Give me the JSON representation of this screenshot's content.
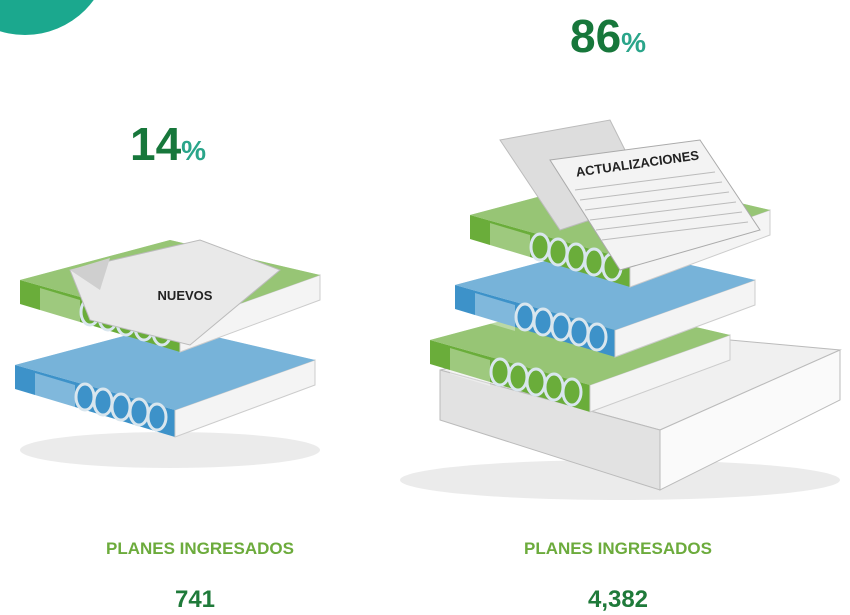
{
  "left": {
    "percent": "14",
    "percent_sign": "%",
    "label": "NUEVOS",
    "caption": "PLANES INGRESADOS",
    "count": "741"
  },
  "right": {
    "percent": "86",
    "percent_sign": "%",
    "label": "ACTUALIZACIONES",
    "caption": "PLANES INGRESADOS",
    "count": "4,382"
  }
}
